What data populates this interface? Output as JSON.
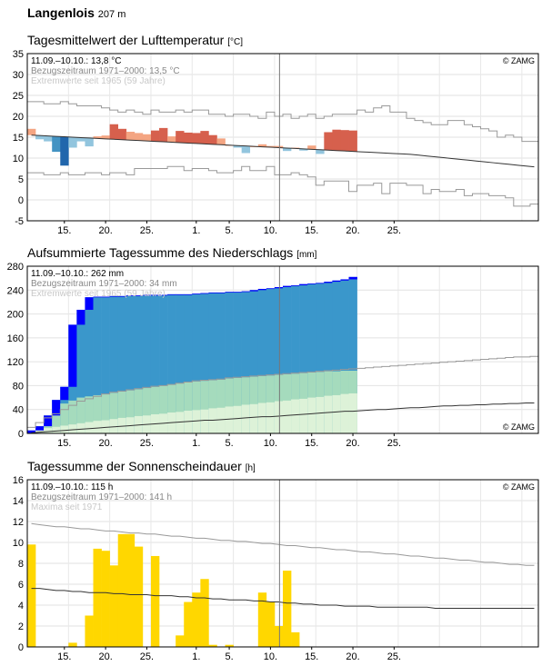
{
  "station": {
    "name": "Langenlois",
    "altitude": "207 m"
  },
  "chart_data": [
    {
      "id": "temp",
      "type": "bar",
      "title": "Tagesmittelwert der Lufttemperatur",
      "unit": "[°C]",
      "ylim": [
        -5,
        35
      ],
      "yticks": [
        "35",
        "30",
        "25",
        "20",
        "15",
        "10",
        "5",
        "0",
        "-5"
      ],
      "xticks": [
        "15.",
        "20.",
        "25.",
        "1.",
        "5.",
        "10.",
        "15.",
        "20.",
        "25."
      ],
      "annotations": [
        "11.09.–10.10.: 13,8 °C",
        "Bezugszeitraum 1971–2000: 13,5 °C",
        "Extremwerte seit 1965 (59 Jahre)"
      ],
      "copyright": "© ZAMG",
      "grid": true,
      "values": [
        17.0,
        14.5,
        14.0,
        11.5,
        8.2,
        12.5,
        14.0,
        12.8,
        15.2,
        15.4,
        18.1,
        17.0,
        16.3,
        16.0,
        15.7,
        16.6,
        17.2,
        15.2,
        16.5,
        16.1,
        16.0,
        16.5,
        15.5,
        14.7,
        13.1,
        12.5,
        11.2,
        12.8,
        13.3,
        12.9,
        12.9,
        11.7,
        12.5,
        11.8,
        13.0,
        11.0,
        16.2,
        16.8,
        16.7,
        16.6
      ],
      "normal": [
        15.5,
        15.4,
        15.3,
        15.2,
        15.1,
        15.0,
        14.9,
        14.8,
        14.7,
        14.6,
        14.5,
        14.4,
        14.3,
        14.2,
        14.1,
        14.0,
        13.9,
        13.8,
        13.7,
        13.6,
        13.5,
        13.4,
        13.3,
        13.2,
        13.1,
        13.0,
        12.9,
        12.8,
        12.7,
        12.6,
        12.5,
        12.4,
        12.3,
        12.2,
        12.1,
        12.0,
        11.9,
        11.8,
        11.7,
        11.6,
        11.5,
        11.4,
        11.3,
        11.2,
        11.1,
        11.0,
        10.9,
        10.7,
        10.5,
        10.3,
        10.1,
        9.9,
        9.7,
        9.5,
        9.3,
        9.1,
        8.9,
        8.7,
        8.5,
        8.3,
        8.1,
        7.9
      ],
      "max_ext": [
        23.5,
        23.5,
        23.0,
        23.0,
        23.5,
        23.0,
        22.5,
        22.5,
        22.5,
        22.0,
        21.5,
        21.0,
        21.5,
        21.0,
        20.5,
        21.5,
        21.0,
        21.0,
        21.5,
        21.0,
        21.5,
        21.5,
        20.5,
        20.5,
        20.0,
        20.5,
        20.5,
        20.0,
        19.5,
        21.0,
        20.0,
        20.5,
        19.5,
        20.0,
        20.5,
        19.5,
        20.0,
        20.5,
        20.5,
        20.5,
        21.5,
        21.0,
        22.0,
        22.5,
        21.0,
        21.0,
        19.5,
        19.0,
        18.5,
        18.0,
        18.0,
        19.0,
        19.0,
        18.0,
        17.5,
        17.0,
        16.5,
        15.0,
        15.5,
        15.0,
        14.0,
        14.0
      ],
      "min_ext": [
        6.5,
        6.5,
        6.0,
        6.0,
        6.5,
        6.0,
        6.0,
        6.5,
        6.5,
        6.0,
        6.5,
        6.5,
        6.0,
        7.5,
        7.5,
        7.5,
        7.5,
        8.0,
        8.0,
        7.0,
        7.5,
        7.5,
        7.0,
        6.5,
        6.5,
        7.0,
        8.0,
        7.0,
        7.0,
        8.0,
        6.0,
        6.0,
        6.5,
        6.0,
        5.5,
        3.5,
        4.5,
        4.5,
        4.5,
        2.0,
        3.5,
        3.5,
        4.0,
        1.5,
        4.0,
        4.0,
        3.5,
        3.5,
        1.5,
        2.5,
        2.0,
        2.0,
        2.5,
        1.0,
        1.5,
        1.5,
        1.0,
        1.0,
        0.5,
        -1.5,
        -1.5,
        -1.0
      ],
      "colors": {
        "warm_light": "#f4a582",
        "warm_dark": "#d6604d",
        "cool_light": "#92c5de",
        "cool_dark": "#4393c3",
        "cool_darker": "#2166ac"
      }
    },
    {
      "id": "precip",
      "type": "area",
      "title": "Aufsummierte Tagessumme des Niederschlags",
      "unit": "[mm]",
      "ylim": [
        0,
        280
      ],
      "yticks": [
        "280",
        "240",
        "200",
        "160",
        "120",
        "80",
        "40",
        "0"
      ],
      "xticks": [
        "15.",
        "20.",
        "25.",
        "1.",
        "5.",
        "10.",
        "15.",
        "20.",
        "25."
      ],
      "annotations": [
        "11.09.–10.10.: 262 mm",
        "Bezugszeitraum 1971–2000: 34 mm",
        "Extremwerte seit 1965 (59 Jahre)"
      ],
      "copyright": "© ZAMG",
      "grid": true,
      "cumulative": [
        5,
        12,
        30,
        56,
        78,
        182,
        207,
        228,
        229,
        229,
        230,
        230,
        231,
        231,
        232,
        232,
        232,
        233,
        233,
        233,
        234,
        235,
        236,
        236,
        237,
        237,
        238,
        240,
        242,
        243,
        245,
        247,
        248,
        250,
        251,
        252,
        254,
        256,
        258,
        262
      ],
      "normal_cum": [
        1,
        2,
        3,
        4,
        5,
        6,
        7,
        8,
        9,
        10,
        11,
        12,
        13,
        14,
        15,
        16,
        17,
        18,
        19,
        20,
        21,
        22,
        22,
        23,
        24,
        25,
        26,
        27,
        28,
        28,
        29,
        30,
        31,
        32,
        33,
        34,
        35,
        36,
        37,
        37,
        38,
        39,
        40,
        40,
        41,
        42,
        43,
        43,
        44,
        45,
        46,
        46,
        47,
        47,
        48,
        48,
        49,
        49,
        50,
        50,
        51,
        51
      ],
      "upper_cum": [
        10,
        18,
        26,
        33,
        40,
        47,
        54,
        58,
        62,
        66,
        69,
        71,
        73,
        75,
        77,
        79,
        80,
        82,
        84,
        86,
        88,
        89,
        90,
        91,
        93,
        94,
        95,
        96,
        97,
        98,
        99,
        100,
        101,
        102,
        103,
        104,
        105,
        106,
        107,
        108,
        109,
        110,
        111,
        112,
        113,
        114,
        115,
        116,
        117,
        118,
        119,
        120,
        121,
        122,
        123,
        124,
        125,
        126,
        127,
        128,
        128,
        129
      ],
      "band_upper": [
        34,
        36,
        38,
        42,
        50,
        55,
        60,
        62,
        64,
        66,
        68,
        70,
        72,
        74,
        76,
        78,
        80,
        82,
        84,
        86,
        87,
        88,
        89,
        90,
        92,
        93,
        94,
        95,
        96,
        97,
        98,
        99,
        100,
        101,
        102,
        103,
        104,
        104,
        105,
        105
      ],
      "band_lower": [
        5,
        7,
        9,
        11,
        13,
        15,
        17,
        19,
        21,
        22,
        24,
        26,
        27,
        29,
        30,
        32,
        33,
        35,
        36,
        38,
        39,
        40,
        42,
        43,
        45,
        46,
        48,
        49,
        51,
        52,
        54,
        55,
        57,
        58,
        60,
        61,
        63,
        64,
        66,
        67
      ],
      "colors": {
        "precip_blue": "#0000ff",
        "area_blue": "#3a97cb",
        "band_green": "#a5dbbd",
        "band_light": "#ddf2d8"
      }
    },
    {
      "id": "sun",
      "type": "bar",
      "title": "Tagessumme der Sonnenscheindauer",
      "unit": "[h]",
      "ylim": [
        0,
        16
      ],
      "yticks": [
        "16",
        "14",
        "12",
        "10",
        "8",
        "6",
        "4",
        "2",
        "0"
      ],
      "xticks": [
        "15.",
        "20.",
        "25.",
        "1.",
        "5.",
        "10.",
        "15.",
        "20.",
        "25."
      ],
      "annotations": [
        "11.09.–10.10.: 115 h",
        "Bezugszeitraum 1971–2000: 141 h",
        "Maxima seit 1971"
      ],
      "copyright": "© ZAMG",
      "grid": true,
      "values": [
        9.8,
        0,
        0,
        0,
        0,
        0.4,
        0,
        3.0,
        9.4,
        9.2,
        7.8,
        10.8,
        10.8,
        9.6,
        0,
        8.7,
        0,
        0,
        1.1,
        4.3,
        5.2,
        6.5,
        0.2,
        0,
        0.2,
        0,
        0,
        0,
        5.2,
        4.3,
        2.0,
        7.3,
        1.4,
        0,
        0,
        0,
        0,
        0,
        0,
        0
      ],
      "max": [
        11.8,
        11.7,
        11.6,
        11.5,
        11.5,
        11.4,
        11.3,
        11.3,
        11.2,
        11.1,
        11.1,
        11.0,
        10.9,
        10.9,
        10.8,
        10.8,
        10.7,
        10.6,
        10.6,
        10.5,
        10.4,
        10.4,
        10.3,
        10.2,
        10.2,
        10.1,
        10.1,
        10.0,
        9.9,
        9.9,
        9.8,
        9.7,
        9.7,
        9.6,
        9.5,
        9.5,
        9.4,
        9.3,
        9.3,
        9.2,
        9.1,
        9.1,
        9.0,
        8.9,
        8.9,
        8.8,
        8.7,
        8.7,
        8.6,
        8.5,
        8.5,
        8.4,
        8.3,
        8.3,
        8.2,
        8.1,
        8.1,
        8.0,
        7.9,
        7.9,
        7.8,
        7.8
      ],
      "normal": [
        5.6,
        5.6,
        5.5,
        5.4,
        5.4,
        5.3,
        5.3,
        5.2,
        5.2,
        5.2,
        5.1,
        5.1,
        5.0,
        5.0,
        5.0,
        4.9,
        4.9,
        4.9,
        4.8,
        4.8,
        4.7,
        4.7,
        4.6,
        4.6,
        4.5,
        4.5,
        4.5,
        4.4,
        4.4,
        4.3,
        4.3,
        4.2,
        4.2,
        4.1,
        4.1,
        4.0,
        4.0,
        4.0,
        3.9,
        3.9,
        3.9,
        3.9,
        3.8,
        3.8,
        3.8,
        3.8,
        3.8,
        3.8,
        3.8,
        3.7,
        3.7,
        3.7,
        3.7,
        3.7,
        3.7,
        3.7,
        3.7,
        3.7,
        3.7,
        3.7,
        3.7,
        3.7
      ],
      "colors": {
        "sun_yellow": "#ffd700"
      }
    }
  ]
}
